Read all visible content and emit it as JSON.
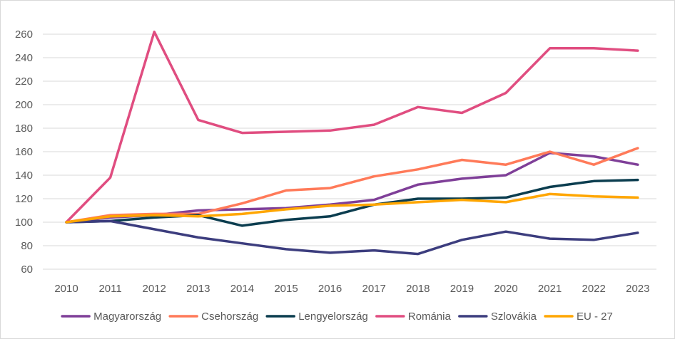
{
  "chart_data": {
    "type": "line",
    "title": "",
    "xlabel": "",
    "ylabel": "",
    "categories": [
      "2010",
      "2011",
      "2012",
      "2013",
      "2014",
      "2015",
      "2016",
      "2017",
      "2018",
      "2019",
      "2020",
      "2021",
      "2022",
      "2023"
    ],
    "ylim": [
      60,
      260
    ],
    "yticks": [
      60,
      80,
      100,
      120,
      140,
      160,
      180,
      200,
      220,
      240,
      260
    ],
    "grid": "horizontal",
    "legend_position": "bottom",
    "series": [
      {
        "name": "Magyarország",
        "color": "#7f3f98",
        "values": [
          100,
          104,
          106,
          110,
          111,
          112,
          115,
          119,
          132,
          137,
          140,
          159,
          156,
          149
        ]
      },
      {
        "name": "Csehország",
        "color": "#ff7a59",
        "values": [
          100,
          106,
          107,
          107,
          116,
          127,
          129,
          139,
          145,
          153,
          149,
          160,
          149,
          163
        ]
      },
      {
        "name": "Lengyelország",
        "color": "#0b3d4f",
        "values": [
          100,
          101,
          104,
          106,
          97,
          102,
          105,
          115,
          120,
          120,
          121,
          130,
          135,
          136
        ]
      },
      {
        "name": "Románia",
        "color": "#e04d80",
        "values": [
          100,
          138,
          262,
          187,
          176,
          177,
          178,
          183,
          198,
          193,
          210,
          248,
          248,
          246
        ]
      },
      {
        "name": "Szlovákia",
        "color": "#3c3d7e",
        "values": [
          100,
          101,
          94,
          87,
          82,
          77,
          74,
          76,
          73,
          85,
          92,
          86,
          85,
          91
        ]
      },
      {
        "name": "EU - 27",
        "color": "#ffa600",
        "values": [
          100,
          105,
          106,
          105,
          107,
          111,
          114,
          115,
          117,
          119,
          117,
          124,
          122,
          121
        ]
      }
    ]
  }
}
